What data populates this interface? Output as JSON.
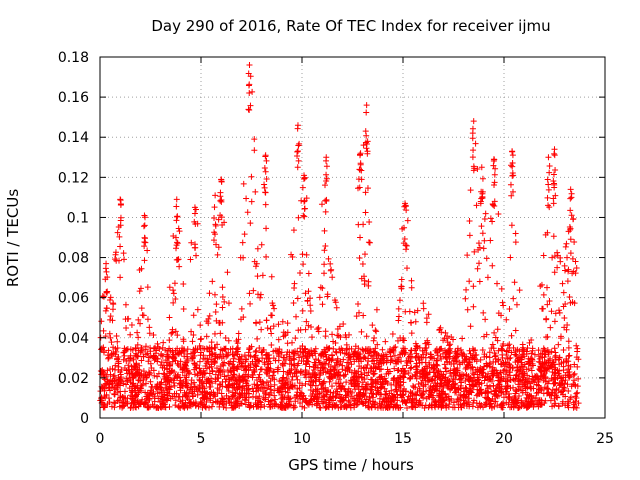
{
  "chart_data": {
    "type": "scatter",
    "title": "Day 290 of 2016, Rate Of TEC Index for receiver ijmu",
    "xlabel": "GPS time / hours",
    "ylabel": "ROTI / TECUs",
    "xlim": [
      0,
      25
    ],
    "ylim": [
      0,
      0.18
    ],
    "xticks": [
      0,
      5,
      10,
      15,
      20,
      25
    ],
    "xtick_labels": [
      "0",
      "5",
      "10",
      "15",
      "20",
      "25"
    ],
    "yticks": [
      0,
      0.02,
      0.04,
      0.06,
      0.08,
      0.1,
      0.12,
      0.14,
      0.16,
      0.18
    ],
    "ytick_labels": [
      "0",
      "0.02",
      "0.04",
      "0.06",
      "0.08",
      "0.1",
      "0.12",
      "0.14",
      "0.16",
      "0.18"
    ],
    "grid": true,
    "marker": "+",
    "color": "#ff0000",
    "series": [
      {
        "name": "ROTI",
        "x_range": [
          0,
          23.7
        ],
        "peaks": [
          {
            "x": 0.3,
            "y": 0.077
          },
          {
            "x": 1.0,
            "y": 0.109
          },
          {
            "x": 2.2,
            "y": 0.101
          },
          {
            "x": 3.8,
            "y": 0.109
          },
          {
            "x": 4.7,
            "y": 0.105
          },
          {
            "x": 5.7,
            "y": 0.111
          },
          {
            "x": 6.0,
            "y": 0.119
          },
          {
            "x": 7.4,
            "y": 0.176
          },
          {
            "x": 8.2,
            "y": 0.131
          },
          {
            "x": 9.8,
            "y": 0.146
          },
          {
            "x": 10.1,
            "y": 0.121
          },
          {
            "x": 11.2,
            "y": 0.13
          },
          {
            "x": 12.9,
            "y": 0.132
          },
          {
            "x": 13.2,
            "y": 0.156
          },
          {
            "x": 15.1,
            "y": 0.107
          },
          {
            "x": 18.5,
            "y": 0.148
          },
          {
            "x": 18.9,
            "y": 0.125
          },
          {
            "x": 19.5,
            "y": 0.129
          },
          {
            "x": 20.4,
            "y": 0.133
          },
          {
            "x": 22.2,
            "y": 0.13
          },
          {
            "x": 22.5,
            "y": 0.134
          },
          {
            "x": 23.3,
            "y": 0.114
          }
        ],
        "typical_band": [
          0.005,
          0.035
        ]
      }
    ]
  }
}
